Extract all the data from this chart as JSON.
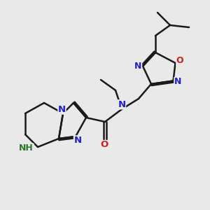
{
  "bg_color": "#e9e9e9",
  "bond_color": "#1a1a1a",
  "N_color": "#2020cc",
  "O_color": "#cc2020",
  "NH_color": "#2a7a2a",
  "line_width": 1.8,
  "font_size": 9.5,
  "xlim": [
    0,
    10
  ],
  "ylim": [
    0,
    10
  ]
}
